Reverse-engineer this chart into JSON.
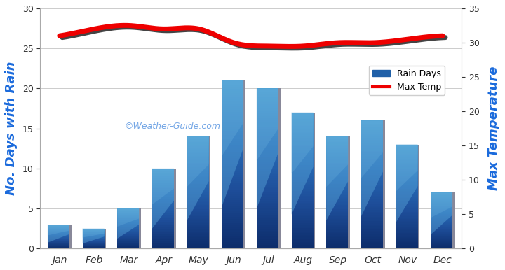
{
  "months": [
    "Jan",
    "Feb",
    "Mar",
    "Apr",
    "May",
    "Jun",
    "Jul",
    "Aug",
    "Sep",
    "Oct",
    "Nov",
    "Dec"
  ],
  "rain_days": [
    3,
    2.5,
    5,
    10,
    14,
    21,
    20,
    17,
    14,
    16,
    13,
    7
  ],
  "max_temp": [
    31,
    32,
    32.5,
    32,
    32,
    30,
    29.5,
    29.5,
    30,
    30,
    30.5,
    31
  ],
  "temp_color": "#ee0000",
  "temp_shadow_color": "#555555",
  "ylabel_left": "No. Days with Rain",
  "ylabel_right": "Max Temperature",
  "ylim_left": [
    0,
    30
  ],
  "ylim_right": [
    0,
    35
  ],
  "yticks_left": [
    0,
    5,
    10,
    15,
    20,
    25,
    30
  ],
  "yticks_right": [
    0,
    5,
    10,
    15,
    20,
    25,
    30,
    35
  ],
  "background_color": "#ffffff",
  "watermark": "©Weather-Guide.com",
  "axis_color": "#1a6adc",
  "tick_label_color": "#333333",
  "bar_dark": "#0d2d6b",
  "bar_mid": "#1e4e9a",
  "bar_light": "#4a90c8",
  "bar_lighter": "#7ab8e0",
  "bar_border": "#888899"
}
